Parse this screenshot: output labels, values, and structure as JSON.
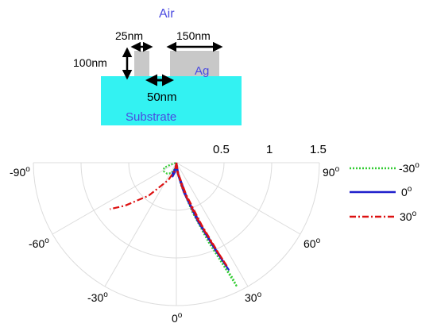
{
  "schematic": {
    "air_label": "Air",
    "dim_25": "25nm",
    "dim_150": "150nm",
    "dim_100": "100nm",
    "dim_50": "50nm",
    "ag_label": "Ag",
    "substrate_label": "Substrate",
    "colors": {
      "substrate": "#33f2f2",
      "metal": "#c8c8c8",
      "label_blue": "#4a4ae0",
      "arrow": "#000000"
    }
  },
  "polar": {
    "radial_ticks": [
      "0.5",
      "1",
      "1.5"
    ],
    "angle_labels": {
      "m90": "-90",
      "m60": "-60",
      "m30": "-30",
      "z": "0",
      "p30": "30",
      "p60": "60",
      "p90": "90"
    },
    "degree_symbol": "o"
  },
  "legend": {
    "items": [
      {
        "label": "-30",
        "sup": "o",
        "color": "#33cc33",
        "style": "dotted"
      },
      {
        "label": "0",
        "sup": "o",
        "color": "#1f1fcc",
        "style": "solid"
      },
      {
        "label": "30",
        "sup": "o",
        "color": "#dd1111",
        "style": "dashdot"
      }
    ]
  },
  "chart_data": {
    "type": "polar-line",
    "theta_unit": "degrees",
    "r_max": 1.5,
    "radial_ticks": [
      0.5,
      1,
      1.5
    ],
    "theta_range": [
      -90,
      90
    ],
    "series": [
      {
        "name": "-30",
        "points": [
          [
            0,
            0
          ],
          [
            -12,
            0.06
          ],
          [
            -25,
            0.12
          ],
          [
            -40,
            0.15
          ],
          [
            -55,
            0.16
          ],
          [
            -68,
            0.14
          ],
          [
            -72,
            0.06
          ],
          [
            -70,
            0.0
          ]
        ],
        "points2": [
          [
            0,
            0
          ],
          [
            8,
            0.1
          ],
          [
            15,
            0.3
          ],
          [
            20,
            0.6
          ],
          [
            24,
            0.95
          ],
          [
            25,
            1.2
          ],
          [
            26,
            1.35
          ],
          [
            26,
            1.45
          ],
          [
            25,
            1.25
          ],
          [
            22,
            0.9
          ],
          [
            18,
            0.55
          ],
          [
            12,
            0.25
          ],
          [
            5,
            0.08
          ],
          [
            0,
            0
          ]
        ]
      },
      {
        "name": "0",
        "points": [
          [
            0,
            0
          ],
          [
            -8,
            0.1
          ],
          [
            -15,
            0.15
          ],
          [
            -20,
            0.12
          ],
          [
            -10,
            0.06
          ],
          [
            0,
            0
          ]
        ],
        "points2": [
          [
            0,
            0
          ],
          [
            10,
            0.12
          ],
          [
            17,
            0.4
          ],
          [
            22,
            0.75
          ],
          [
            25,
            1.1
          ],
          [
            26,
            1.25
          ],
          [
            24,
            1.0
          ],
          [
            20,
            0.65
          ],
          [
            14,
            0.32
          ],
          [
            7,
            0.12
          ],
          [
            0,
            0
          ]
        ]
      },
      {
        "name": "30",
        "points": [
          [
            0,
            0
          ],
          [
            -10,
            0.08
          ],
          [
            -25,
            0.2
          ],
          [
            -40,
            0.45
          ],
          [
            -50,
            0.7
          ],
          [
            -55,
            0.85
          ]
        ],
        "points2": [
          [
            0,
            0
          ],
          [
            10,
            0.12
          ],
          [
            17,
            0.35
          ],
          [
            22,
            0.7
          ],
          [
            25,
            1.05
          ],
          [
            26,
            1.2
          ],
          [
            24,
            0.95
          ],
          [
            20,
            0.6
          ],
          [
            14,
            0.3
          ],
          [
            6,
            0.1
          ],
          [
            0,
            0
          ]
        ]
      }
    ]
  }
}
